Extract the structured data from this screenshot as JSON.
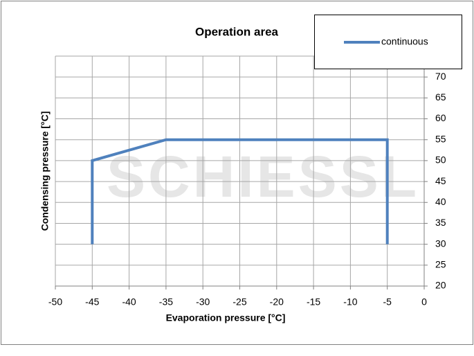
{
  "chart_data": {
    "type": "line",
    "title": "Operation area",
    "watermark": "SCHIESSL",
    "x_label": "Evaporation pressure [°C]",
    "y_label": "Condensing pressure [°C]",
    "xlim": [
      -50,
      0
    ],
    "xticks": [
      -50,
      -45,
      -40,
      -35,
      -30,
      -25,
      -20,
      -15,
      -10,
      -5,
      0
    ],
    "ylim": [
      20,
      75
    ],
    "yticks": [
      20,
      25,
      30,
      35,
      40,
      45,
      50,
      55,
      60,
      65,
      70
    ],
    "grid": true,
    "legend": "top-right",
    "series": [
      {
        "name": "continuous",
        "color": "#4f81bd",
        "x": [
          -45,
          -45,
          -35,
          -5,
          -5
        ],
        "values": [
          30,
          50,
          55,
          55,
          30
        ]
      }
    ]
  }
}
